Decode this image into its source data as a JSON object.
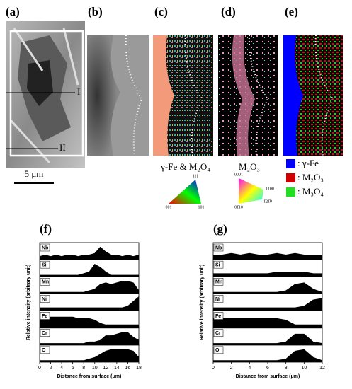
{
  "panels": {
    "labels": [
      "(a)",
      "(b)",
      "(c)",
      "(d)",
      "(e)"
    ],
    "line_markers": [
      "I",
      "II"
    ],
    "scale_bar": "5 μm",
    "c_caption": "γ-Fe & M₂O₄",
    "d_caption": "M₂O₃",
    "c_triangle": [
      "111",
      "001",
      "101"
    ],
    "d_triangle": [
      "0001",
      "01̄10",
      "11̄00",
      "1̄21̄0"
    ],
    "e_legend": [
      ": γ-Fe",
      ": M₂O₃",
      ": M₃O₄"
    ]
  },
  "chart_data": [
    {
      "type": "area",
      "title": "(f)",
      "xlabel": "Distance from surface (μm)",
      "ylabel": "Relative intensity (arbitrary unit)",
      "x": [
        0,
        1,
        2,
        3,
        4,
        5,
        6,
        7,
        8,
        9,
        10,
        11,
        12,
        13,
        14,
        15,
        16,
        17,
        18
      ],
      "xlim": [
        0,
        18
      ],
      "xticks": [
        0,
        2,
        4,
        6,
        8,
        10,
        12,
        14,
        16,
        18
      ],
      "ylim": [
        0,
        10
      ],
      "series": [
        {
          "name": "Nb",
          "color": "#000000",
          "values": [
            2,
            3,
            2,
            3,
            2,
            3,
            3,
            2,
            3,
            3,
            4,
            8,
            5,
            3,
            3,
            2,
            3,
            2,
            3
          ]
        },
        {
          "name": "Si",
          "color": "#000000",
          "values": [
            1,
            1,
            1,
            1,
            1,
            1,
            1,
            1,
            2,
            3,
            8,
            6,
            3,
            1,
            1,
            1,
            1,
            1,
            1
          ]
        },
        {
          "name": "Mn",
          "color": "#000000",
          "values": [
            1,
            1,
            1,
            1,
            1,
            1,
            1,
            1,
            1,
            2,
            3,
            6,
            7,
            6,
            7,
            8,
            8,
            7,
            2
          ]
        },
        {
          "name": "Ni",
          "color": "#000000",
          "values": [
            2,
            2,
            2,
            2,
            2,
            2,
            2,
            2,
            2,
            2,
            2,
            2,
            2,
            2,
            2,
            2,
            3,
            6,
            9
          ]
        },
        {
          "name": "Fe",
          "color": "#000000",
          "values": [
            7,
            7,
            7,
            7,
            7,
            7,
            7,
            6,
            6,
            6,
            5,
            3,
            2,
            2,
            2,
            2,
            2,
            2,
            2
          ]
        },
        {
          "name": "Cr",
          "color": "#000000",
          "values": [
            1,
            1,
            1,
            1,
            1,
            1,
            1,
            1,
            1,
            2,
            2,
            3,
            6,
            6,
            7,
            8,
            8,
            5,
            3
          ]
        },
        {
          "name": "O",
          "color": "#000000",
          "values": [
            1,
            1,
            1,
            1,
            1,
            1,
            1,
            1,
            1,
            2,
            3,
            5,
            7,
            8,
            8,
            8,
            8,
            7,
            3
          ]
        }
      ]
    },
    {
      "type": "area",
      "title": "(g)",
      "xlabel": "Distance from surface (μm)",
      "ylabel": "Relative intensity (arbitrary unit)",
      "x": [
        0,
        1,
        2,
        3,
        4,
        5,
        6,
        7,
        8,
        9,
        10,
        11,
        12
      ],
      "xlim": [
        0,
        12
      ],
      "xticks": [
        0,
        2,
        4,
        6,
        8,
        10,
        12
      ],
      "ylim": [
        0,
        10
      ],
      "series": [
        {
          "name": "Nb",
          "color": "#000000",
          "values": [
            3,
            3,
            4,
            3,
            4,
            3,
            3,
            4,
            3,
            4,
            3,
            3,
            3
          ]
        },
        {
          "name": "Si",
          "color": "#000000",
          "values": [
            2,
            2,
            2,
            2,
            2,
            2,
            2,
            3,
            3,
            3,
            3,
            2,
            2
          ]
        },
        {
          "name": "Mn",
          "color": "#000000",
          "values": [
            1,
            1,
            1,
            1,
            1,
            1,
            1,
            1,
            2,
            6,
            7,
            3,
            1
          ]
        },
        {
          "name": "Ni",
          "color": "#000000",
          "values": [
            2,
            2,
            2,
            2,
            2,
            2,
            2,
            2,
            2,
            2,
            3,
            7,
            8
          ]
        },
        {
          "name": "Fe",
          "color": "#000000",
          "values": [
            6,
            6,
            6,
            6,
            6,
            6,
            6,
            6,
            5,
            2,
            2,
            2,
            2
          ]
        },
        {
          "name": "Cr",
          "color": "#000000",
          "values": [
            1,
            1,
            1,
            1,
            1,
            1,
            1,
            1,
            2,
            7,
            7,
            2,
            1
          ]
        },
        {
          "name": "O",
          "color": "#000000",
          "values": [
            1,
            1,
            1,
            1,
            1,
            1,
            1,
            1,
            2,
            7,
            8,
            3,
            1
          ]
        }
      ]
    }
  ]
}
